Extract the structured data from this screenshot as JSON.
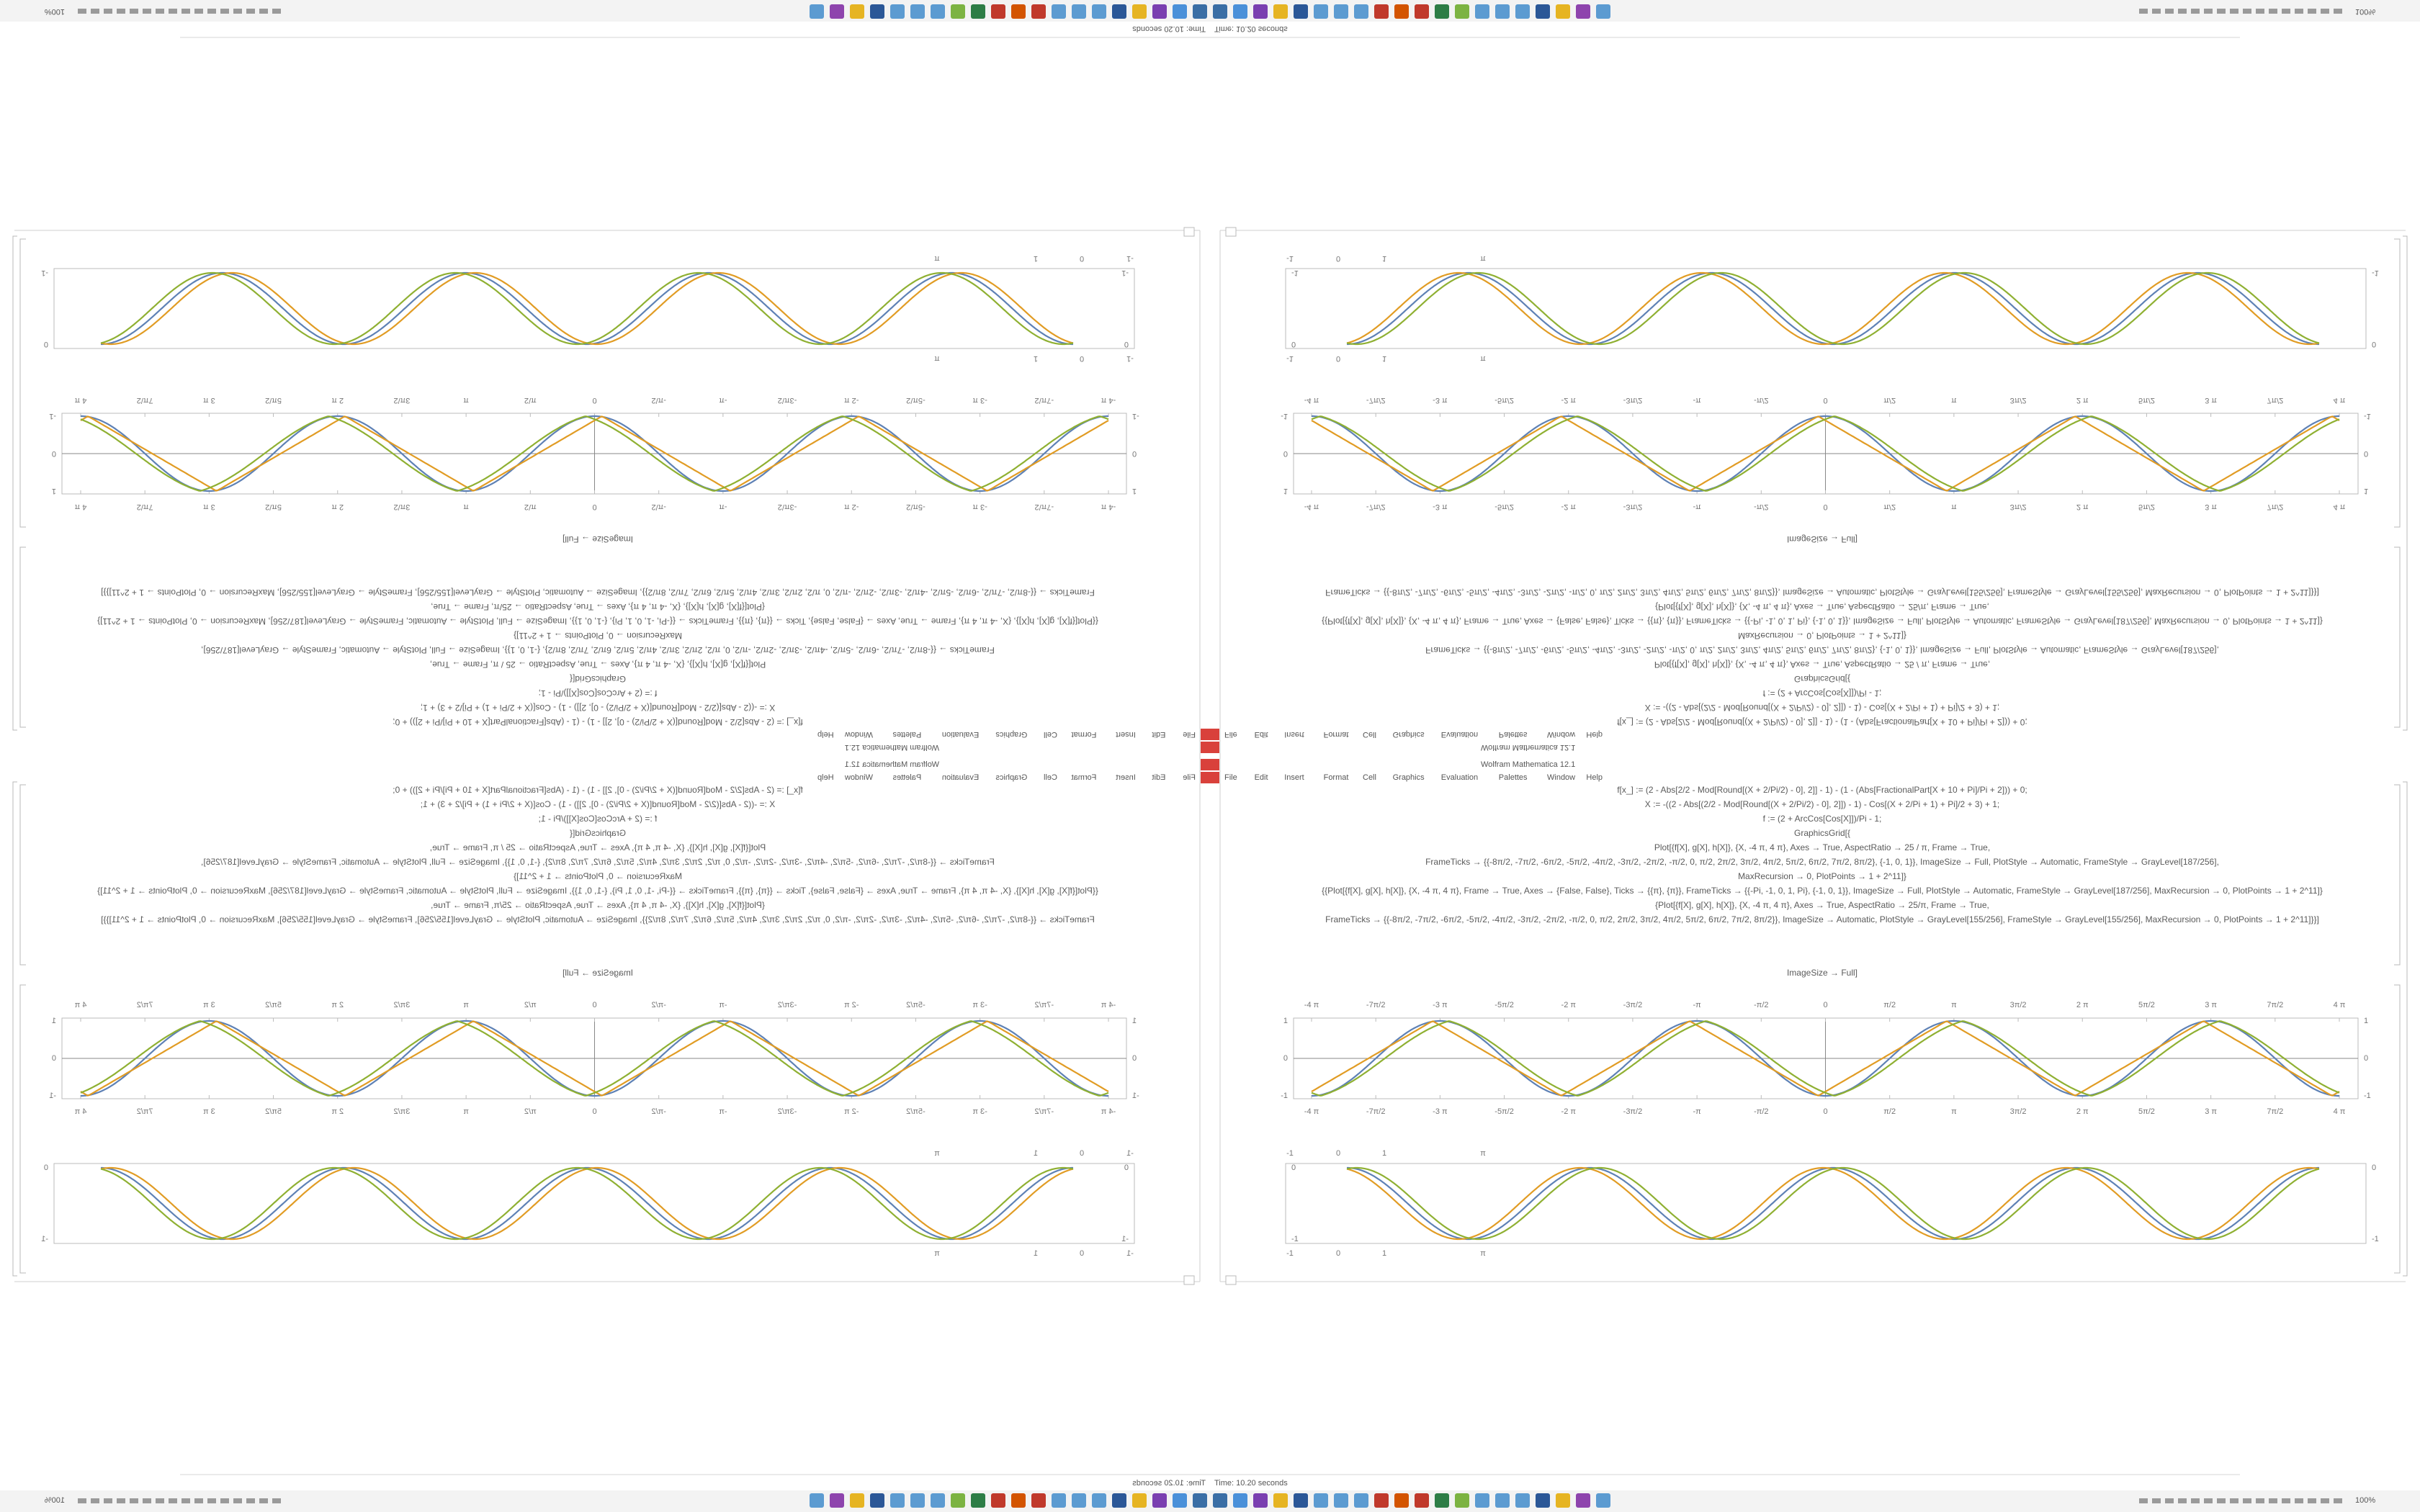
{
  "taskbar": {
    "status": "Time: 10.20 seconds",
    "zoom": "100%"
  },
  "window": {
    "title": "Wolfram Mathematica 12.1",
    "menu": [
      "File",
      "Edit",
      "Insert",
      "Format",
      "Cell",
      "Graphics",
      "Evaluation",
      "Palettes",
      "Window",
      "Help"
    ]
  },
  "notebook": {
    "code": [
      "f[x_] := (2 - Abs[2/2 - Mod[Round[(X + 2/Pi/2) - 0], 2]] - 1) - (1 - (Abs[FractionalPart[X + 10 + Pi]/Pi + 2])) + 0;",
      "X := -((2 - Abs[(2/2 - Mod[Round[(X + 2/Pi/2) - 0], 2]]) - 1) - Cos[(X + 2/Pi + 1) + Pi]/2 + 3) + 1;",
      "f := (2 + ArcCos[Cos[X]])/Pi - 1;",
      "GraphicsGrid[{",
      "Plot[{f[X], g[X], h[X]}, {X, -4 π, 4 π}, Axes → True, AspectRatio → 25 / π, Frame → True,",
      "FrameTicks → {{-8π/2, -7π/2, -6π/2, -5π/2, -4π/2, -3π/2, -2π/2, -π/2, 0, π/2, 2π/2, 3π/2, 4π/2, 5π/2, 6π/2, 7π/2, 8π/2}, {-1, 0, 1}}, ImageSize → Full, PlotStyle → Automatic, FrameStyle → GrayLevel[187/256],",
      "MaxRecursion → 0, PlotPoints → 1 + 2^11]}",
      "{{Plot[{f[X], g[X], h[X]}, {X, -4 π, 4 π}, Frame → True, Axes → {False, False}, Ticks → {{π}, {π}}, FrameTicks → {{-Pi, -1, 0, 1, Pi}, {-1, 0, 1}}, ImageSize → Full, PlotStyle → Automatic, FrameStyle → GrayLevel[187/256], MaxRecursion → 0, PlotPoints → 1 + 2^11]}",
      "{Plot[{f[X], g[X], h[X]}, {X, -4 π, 4 π}, Axes → True, AspectRatio → 25/π, Frame → True,",
      "FrameTicks → {{-8π/2, -7π/2, -6π/2, -5π/2, -4π/2, -3π/2, -2π/2, -π/2, 0, π/2, 2π/2, 3π/2, 4π/2, 5π/2, 6π/2, 7π/2, 8π/2}}, ImageSize → Automatic, PlotStyle → GrayLevel[155/256], FrameStyle → GrayLevel[155/256], MaxRecursion → 0, PlotPoints → 1 + 2^11]}}]"
    ],
    "output": "ImageSize → Full]",
    "plot1": {
      "xticks": [
        "-4 π",
        "-7π/2",
        "-3 π",
        "-5π/2",
        "-2 π",
        "-3π/2",
        "-π",
        "-π/2",
        "0",
        "π/2",
        "π",
        "3π/2",
        "2 π",
        "5π/2",
        "3 π",
        "7π/2",
        "4 π"
      ],
      "yticks": [
        "1",
        "0",
        "-1"
      ]
    },
    "plot2": {
      "xticks": [
        "-1",
        "0",
        "1",
        "π"
      ],
      "yticks": [
        "0",
        "-1"
      ]
    }
  }
}
